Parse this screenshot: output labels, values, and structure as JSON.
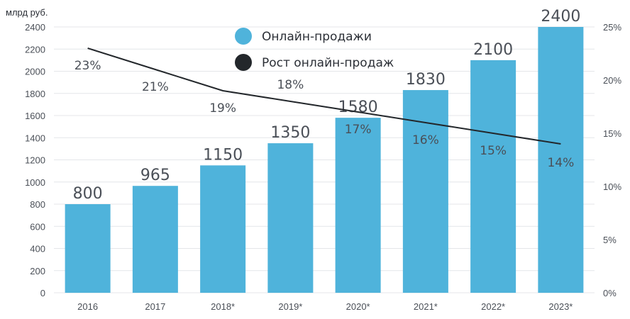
{
  "chart_data": {
    "type": "bar",
    "ylabel": "млрд руб.",
    "categories": [
      "2016",
      "2017",
      "2018*",
      "2019*",
      "2020*",
      "2021*",
      "2022*",
      "2023*"
    ],
    "ylim": [
      0,
      2400
    ],
    "yticks": [
      0,
      200,
      400,
      600,
      800,
      1000,
      1200,
      1400,
      1600,
      1800,
      2000,
      2200,
      2400
    ],
    "y2lim": [
      0,
      25
    ],
    "y2ticks": [
      "0%",
      "5%",
      "10%",
      "15%",
      "20%",
      "25%"
    ],
    "y2tick_values": [
      0,
      5,
      10,
      15,
      20,
      25
    ],
    "grid": true,
    "legend_position": "top-center",
    "series": [
      {
        "name": "Онлайн-продажи",
        "type": "bar",
        "color": "#4fb3db",
        "values": [
          800,
          965,
          1150,
          1350,
          1580,
          1830,
          2100,
          2400
        ],
        "labels": [
          "800",
          "965",
          "1150",
          "1350",
          "1580",
          "1830",
          "2100",
          "2400"
        ]
      },
      {
        "name": "Рост онлайн-продаж",
        "type": "line",
        "axis": "right",
        "color": "#23272b",
        "values": [
          23,
          21,
          19,
          18,
          17,
          16,
          15,
          14
        ],
        "labels": [
          "23%",
          "21%",
          "19%",
          "18%",
          "17%",
          "16%",
          "15%",
          "14%"
        ]
      }
    ]
  }
}
